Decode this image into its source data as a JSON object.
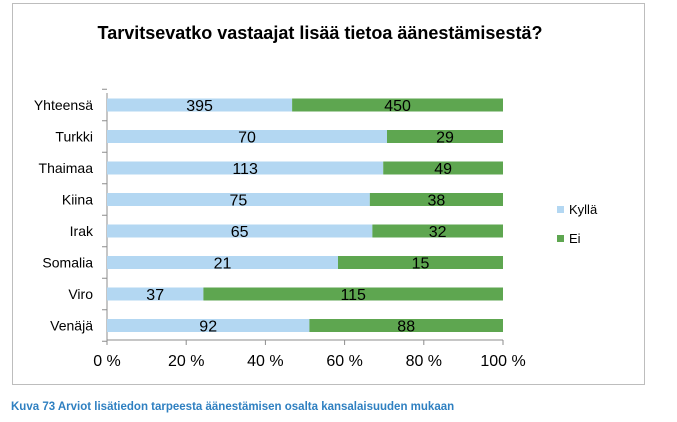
{
  "chart_data": {
    "type": "bar",
    "orientation": "horizontal",
    "stacking": "percent",
    "title": "Tarvitsevatko vastaajat lisää tietoa äänestämisestä?",
    "categories": [
      "Yhteensä",
      "Turkki",
      "Thaimaa",
      "Kiina",
      "Irak",
      "Somalia",
      "Viro",
      "Venäjä"
    ],
    "series": [
      {
        "name": "Kyllä",
        "color": "#b3d7f2",
        "values": [
          395,
          70,
          113,
          75,
          65,
          21,
          37,
          92
        ]
      },
      {
        "name": "Ei",
        "color": "#5ea650",
        "values": [
          450,
          29,
          49,
          38,
          32,
          15,
          115,
          88
        ]
      }
    ],
    "xlim": [
      0,
      100
    ],
    "x_ticks": [
      "0 %",
      "20 %",
      "40 %",
      "60 %",
      "80 %",
      "100 %"
    ],
    "legend_position": "right",
    "grid": false
  },
  "caption": "Kuva 73 Arviot lisätiedon tarpeesta äänestämisen osalta kansalaisuuden mukaan"
}
